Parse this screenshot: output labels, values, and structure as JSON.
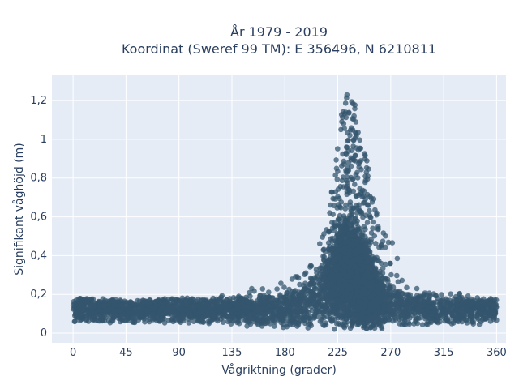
{
  "chart_data": {
    "type": "scatter",
    "title_line1": "År 1979 - 2019",
    "title_line2": "Koordinat (Sweref 99 TM): E 356496, N 6210811",
    "xlabel": "Vågriktning (grader)",
    "ylabel": "Signifikant våghöjd (m)",
    "xlim": [
      -18,
      368
    ],
    "ylim": [
      -0.05,
      1.33
    ],
    "xticks": [
      0,
      45,
      90,
      135,
      180,
      225,
      270,
      315,
      360
    ],
    "xtick_labels": [
      "0",
      "45",
      "90",
      "135",
      "180",
      "225",
      "270",
      "315",
      "360"
    ],
    "yticks": [
      0,
      0.2,
      0.4,
      0.6,
      0.8,
      1.0,
      1.2
    ],
    "ytick_labels": [
      "0",
      "0,2",
      "0,4",
      "0,6",
      "0,8",
      "1",
      "1,2"
    ],
    "grid": true,
    "marker_color": "#34566d",
    "plot_bg": "#e5ecf6",
    "envelope": {
      "x": [
        0,
        20,
        45,
        90,
        135,
        160,
        180,
        195,
        205,
        215,
        220,
        225,
        230,
        235,
        240,
        245,
        250,
        255,
        260,
        265,
        270,
        280,
        290,
        300,
        315,
        340,
        360
      ],
      "y_low": [
        0.03,
        0.05,
        0.05,
        0.05,
        0.04,
        0.03,
        0.02,
        0.01,
        0.01,
        0.01,
        0.01,
        0.01,
        0.01,
        0.01,
        0.01,
        0.01,
        0.01,
        0.01,
        0.01,
        0.01,
        0.02,
        0.02,
        0.02,
        0.03,
        0.04,
        0.04,
        0.05
      ],
      "y_high": [
        0.18,
        0.18,
        0.17,
        0.18,
        0.21,
        0.24,
        0.27,
        0.31,
        0.4,
        0.55,
        0.8,
        1.0,
        1.2,
        1.28,
        1.2,
        1.0,
        0.9,
        0.78,
        0.65,
        0.55,
        0.5,
        0.35,
        0.25,
        0.22,
        0.21,
        0.2,
        0.19
      ],
      "y_typical": [
        0.14,
        0.14,
        0.14,
        0.14,
        0.14,
        0.14,
        0.15,
        0.18,
        0.22,
        0.3,
        0.36,
        0.4,
        0.42,
        0.42,
        0.4,
        0.36,
        0.32,
        0.27,
        0.22,
        0.2,
        0.18,
        0.16,
        0.15,
        0.14,
        0.14,
        0.14,
        0.14
      ]
    }
  }
}
